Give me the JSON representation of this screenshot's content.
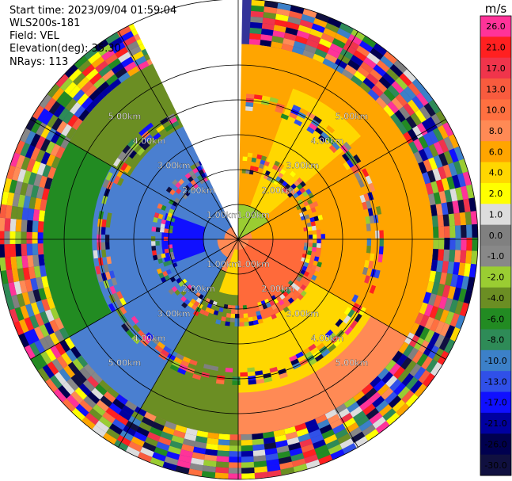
{
  "header": {
    "start_time": "Start time: 2023/09/04 01:59:04",
    "instrument": "WLS200s-181",
    "field": "Field: VEL",
    "elevation": "Elevation(deg): 35.30",
    "nrays": "NRays: 113"
  },
  "chart_data": {
    "type": "ppi",
    "field": "VEL",
    "units": "m/s",
    "range_rings_km": [
      1,
      2,
      3,
      4,
      5
    ],
    "ring_labels": [
      "1.00km",
      "2.00km",
      "3.00km",
      "4.00km",
      "5.00km"
    ],
    "max_range_km": 6.7,
    "missing_sector_deg": [
      -26,
      1
    ],
    "colorbar": {
      "units": "m/s",
      "ticks": [
        "26.0",
        "21.0",
        "17.0",
        "13.0",
        "10.0",
        "8.0",
        "6.0",
        "4.0",
        "2.0",
        "1.0",
        "0.0",
        "-1.0",
        "-2.0",
        "-4.0",
        "-6.0",
        "-8.0",
        "-10.0",
        "-13.0",
        "-17.0",
        "-21.0",
        "-26.0",
        "-30.0"
      ],
      "colors": [
        "#ff3399",
        "#ff2020",
        "#f0344b",
        "#f85b3e",
        "#ff7040",
        "#ff8a55",
        "#ffa500",
        "#ffd700",
        "#ffff00",
        "#dddddd",
        "#808080",
        "#888888",
        "#9acd32",
        "#6b8e23",
        "#228b22",
        "#2e8b57",
        "#3c80c8",
        "#3050e8",
        "#1010ff",
        "#0000a0",
        "#00004f",
        "#101040"
      ]
    },
    "regions": [
      {
        "az_from": 0,
        "az_to": 60,
        "r_from": 0.4,
        "r_to": 5.6,
        "color": "#ffa500"
      },
      {
        "az_from": 20,
        "az_to": 50,
        "r_from": 0.8,
        "r_to": 4.6,
        "color": "#ffd700"
      },
      {
        "az_from": 60,
        "az_to": 120,
        "r_from": 0.4,
        "r_to": 5.6,
        "color": "#ffa500"
      },
      {
        "az_from": 90,
        "az_to": 180,
        "r_from": 0.3,
        "r_to": 2.4,
        "color": "#ff6a3a"
      },
      {
        "az_from": 120,
        "az_to": 180,
        "r_from": 2.4,
        "r_to": 4.4,
        "color": "#ffd700"
      },
      {
        "az_from": 180,
        "az_to": 210,
        "r_from": 1.0,
        "r_to": 5.6,
        "color": "#6b8e23"
      },
      {
        "az_from": 180,
        "az_to": 200,
        "r_from": 0.3,
        "r_to": 1.6,
        "color": "#ffd700"
      },
      {
        "az_from": 210,
        "az_to": 270,
        "r_from": 0.6,
        "r_to": 5.6,
        "color": "#4a7fd0"
      },
      {
        "az_from": 270,
        "az_to": 334,
        "r_from": 0.4,
        "r_to": 5.6,
        "color": "#4a7fd0"
      },
      {
        "az_from": 300,
        "az_to": 334,
        "r_from": 3.6,
        "r_to": 5.6,
        "color": "#6b8e23"
      },
      {
        "az_from": 240,
        "az_to": 300,
        "r_from": 4.2,
        "r_to": 5.6,
        "color": "#228b22"
      },
      {
        "az_from": 0,
        "az_to": 60,
        "r_from": 0.0,
        "r_to": 1.0,
        "color": "#9acd32"
      },
      {
        "az_from": 250,
        "az_to": 290,
        "r_from": 1.0,
        "r_to": 2.2,
        "color": "#1010ff"
      }
    ]
  }
}
